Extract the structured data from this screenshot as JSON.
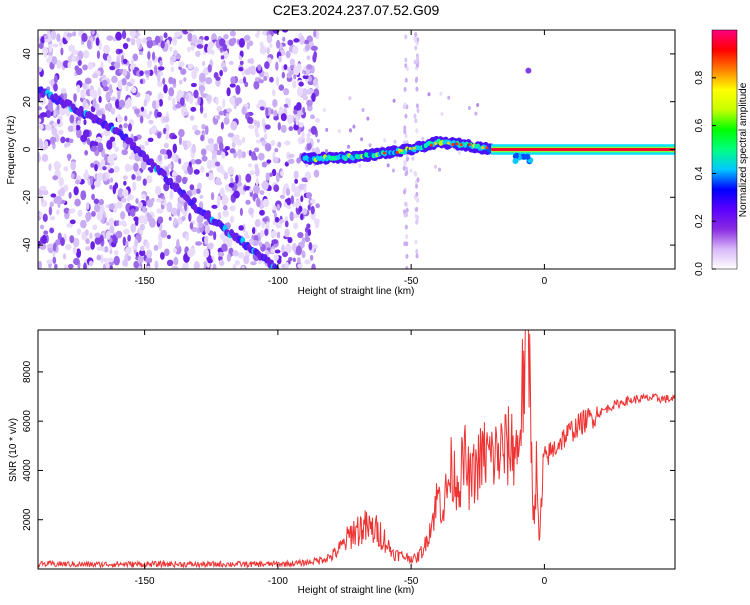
{
  "title": "C2E3.2024.237.07.52.G09",
  "chart_data": [
    {
      "type": "heatmap",
      "xlabel": "Height of straight line (km)",
      "ylabel": "Frequency (Hz)",
      "xlim": [
        -190,
        49
      ],
      "ylim": [
        -50,
        50
      ],
      "x_ticks": [
        -150,
        -100,
        -50,
        0
      ],
      "x_tick_labels": [
        "-150",
        "-100",
        "-50",
        "0"
      ],
      "y_ticks": [
        -40,
        -20,
        0,
        20,
        40
      ],
      "y_tick_labels": [
        "-40",
        "-20",
        "0",
        "20",
        "40"
      ],
      "colorbar": {
        "label": "Normalized spectral amplitude",
        "range": [
          0,
          1
        ],
        "ticks": [
          0.0,
          0.2,
          0.4,
          0.6,
          0.8
        ],
        "tick_labels": [
          "0.0",
          "0.2",
          "0.4",
          "0.6",
          "0.8"
        ],
        "colors": [
          "#ffffff",
          "#d8b8f8",
          "#8a2be2",
          "#5a00ff",
          "#0000ff",
          "#00c8ff",
          "#00ff80",
          "#00ff00",
          "#c8ff00",
          "#ffff00",
          "#ff8000",
          "#ff0000",
          "#ff0080"
        ]
      },
      "features": {
        "noise_region_km": [
          -190,
          -85
        ],
        "sloped_trace_points": [
          {
            "x": -190,
            "y": 25
          },
          {
            "x": -160,
            "y": 8
          },
          {
            "x": -130,
            "y": -25
          },
          {
            "x": -100,
            "y": -50
          }
        ],
        "main_trace_points": [
          {
            "x": -90,
            "y": -4
          },
          {
            "x": -70,
            "y": -3
          },
          {
            "x": -50,
            "y": 0
          },
          {
            "x": -40,
            "y": 3
          },
          {
            "x": -30,
            "y": 2
          },
          {
            "x": -20,
            "y": 0
          },
          {
            "x": 49,
            "y": 0
          }
        ],
        "notch_near_x": -8,
        "vertical_streaks_x": [
          -52,
          -48
        ],
        "isolated_blob": {
          "x": -6,
          "y": 33
        }
      }
    },
    {
      "type": "line",
      "xlabel": "Height of straight line (km)",
      "ylabel": "SNR (10 * v/v)",
      "xlim": [
        -190,
        49
      ],
      "ylim": [
        0,
        9700
      ],
      "x_ticks": [
        -150,
        -100,
        -50,
        0
      ],
      "x_tick_labels": [
        "-150",
        "-100",
        "-50",
        "0"
      ],
      "y_ticks": [
        2000,
        4000,
        6000,
        8000
      ],
      "y_tick_labels": [
        "2000",
        "4000",
        "6000",
        "8000"
      ],
      "series_color": "#ee3333",
      "series": [
        {
          "x": [
            -190,
            -180,
            -170,
            -160,
            -150,
            -140,
            -130,
            -120,
            -110,
            -100,
            -95,
            -90,
            -85,
            -80,
            -76,
            -72,
            -68,
            -65,
            -62,
            -60,
            -58,
            -56,
            -52,
            -48,
            -45,
            -42,
            -40,
            -38,
            -35,
            -32,
            -30,
            -28,
            -25,
            -22,
            -20,
            -17,
            -14,
            -12,
            -10,
            -8,
            -6,
            -5,
            -4,
            -3,
            -2,
            0,
            3,
            6,
            10,
            15,
            20,
            25,
            30,
            35,
            40,
            45,
            49
          ],
          "y": [
            200,
            200,
            180,
            200,
            190,
            200,
            180,
            200,
            190,
            200,
            220,
            250,
            350,
            500,
            900,
            1500,
            1700,
            1600,
            1500,
            1200,
            800,
            600,
            500,
            400,
            900,
            2000,
            3000,
            2500,
            4000,
            3500,
            4500,
            3500,
            4200,
            4700,
            4500,
            4700,
            4900,
            5000,
            4800,
            7500,
            9600,
            6000,
            2000,
            4000,
            1000,
            4500,
            4800,
            5200,
            5600,
            6000,
            6300,
            6600,
            6800,
            6900,
            6950,
            6900,
            6900
          ]
        }
      ]
    }
  ]
}
